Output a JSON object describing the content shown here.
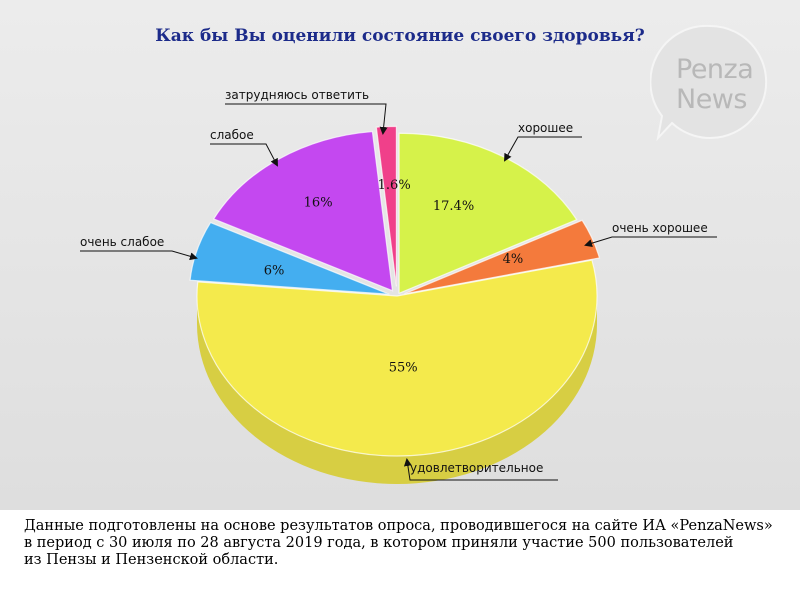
{
  "chart_data": {
    "type": "pie",
    "title": "Как бы Вы оценили состояние своего здоровья?",
    "slices": [
      {
        "category": "хорошее",
        "value": 17.4,
        "label": "17.4%",
        "color": "#d6f24a"
      },
      {
        "category": "очень хорошее",
        "value": 4,
        "label": "4%",
        "color": "#f47a3c"
      },
      {
        "category": "удовлетворительное",
        "value": 55,
        "label": "55%",
        "color": "#f4ea4c"
      },
      {
        "category": "очень слабое",
        "value": 6,
        "label": "6%",
        "color": "#44aef0"
      },
      {
        "category": "слабое",
        "value": 16,
        "label": "16%",
        "color": "#c448f0"
      },
      {
        "category": "затрудняюсь ответить",
        "value": 1.6,
        "label": "1.6%",
        "color": "#f0408a"
      }
    ]
  },
  "logo": {
    "line1": "Penza",
    "line2": "News"
  },
  "footnote": [
    "Данные подготовлены на основе результатов опроса, проводившегося на сайте ИА «PenzaNews»",
    "в период с 30 июля по 28 августа 2019 года, в котором приняли участие 500 пользователей",
    "из Пензы и Пензенской области."
  ]
}
